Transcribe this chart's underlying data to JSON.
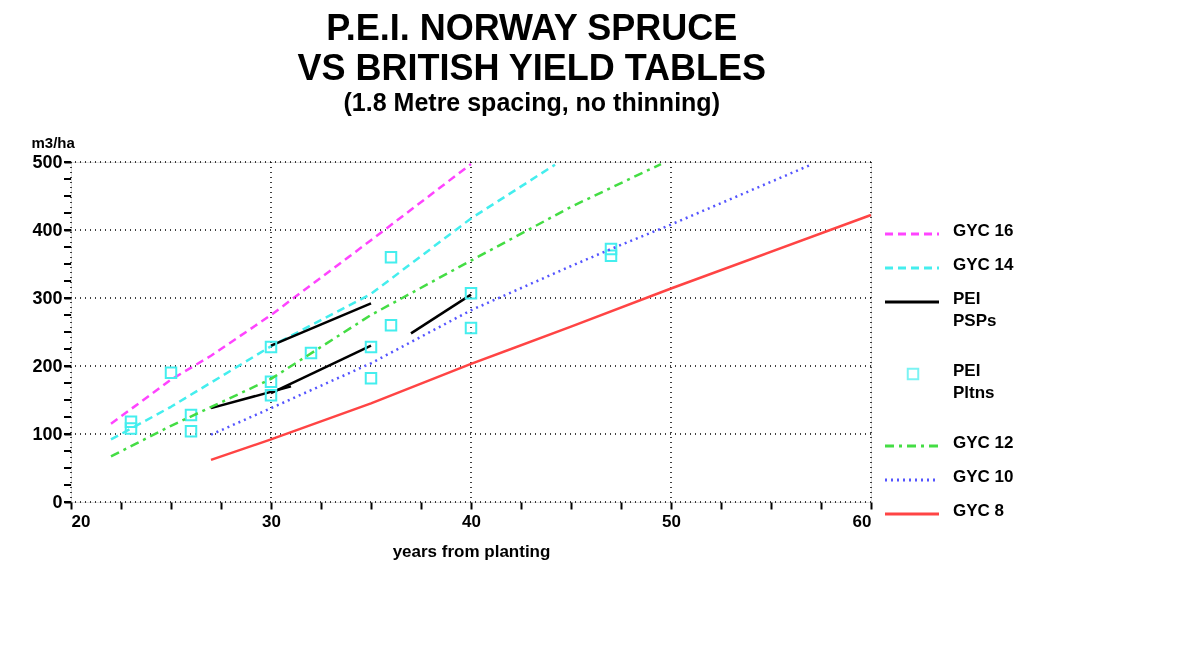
{
  "chart_data": {
    "type": "line",
    "title": "P.E.I. NORWAY SPRUCE\nVS BRITISH YIELD TABLES",
    "subtitle": "(1.8 Metre spacing, no thinning)",
    "xlabel": "years from planting",
    "ylabel": "m3/ha",
    "xlim": [
      20,
      60
    ],
    "ylim": [
      0,
      500
    ],
    "xticks": [
      20,
      {
        "value": 22.5,
        "label": null
      },
      {
        "value": 25,
        "label": null
      },
      {
        "value": 27.5,
        "label": null
      },
      30,
      {
        "value": 32.5,
        "label": null
      },
      {
        "value": 35,
        "label": null
      },
      {
        "value": 37.5,
        "label": null
      },
      40,
      {
        "value": 42.5,
        "label": null
      },
      {
        "value": 45,
        "label": null
      },
      {
        "value": 47.5,
        "label": null
      },
      50,
      {
        "value": 52.5,
        "label": null
      },
      {
        "value": 55,
        "label": null
      },
      {
        "value": 57.5,
        "label": null
      },
      60
    ],
    "yticks": [
      0,
      {
        "value": 25,
        "label": null
      },
      {
        "value": 50,
        "label": null
      },
      {
        "value": 75,
        "label": null
      },
      100,
      {
        "value": 125,
        "label": null
      },
      {
        "value": 150,
        "label": null
      },
      {
        "value": 175,
        "label": null
      },
      200,
      {
        "value": 225,
        "label": null
      },
      {
        "value": 250,
        "label": null
      },
      {
        "value": 275,
        "label": null
      },
      300,
      {
        "value": 325,
        "label": null
      },
      {
        "value": 350,
        "label": null
      },
      {
        "value": 375,
        "label": null
      },
      400,
      {
        "value": 425,
        "label": null
      },
      {
        "value": 450,
        "label": null
      },
      {
        "value": 475,
        "label": null
      },
      500
    ],
    "grid": true,
    "legend": "right",
    "series": [
      {
        "name": "GYC 16",
        "color": "#ff44ff",
        "line_style": "dashed",
        "x": [
          22,
          25,
          27,
          30,
          35,
          40
        ],
        "values": [
          115,
          180,
          215,
          275,
          385,
          497
        ]
      },
      {
        "name": "GYC 14",
        "color": "#44eeee",
        "line_style": "dashed",
        "x": [
          22,
          25,
          30,
          35,
          40,
          44.2
        ],
        "values": [
          92,
          140,
          229,
          306,
          417,
          496
        ]
      },
      {
        "name": "PEI PSPs",
        "color": "#000000",
        "line_style": "solid",
        "x": [
          27,
          31
        ],
        "values": [
          138,
          170
        ]
      },
      {
        "color": "#000000",
        "line_style": "solid",
        "x": [
          30,
          35
        ],
        "values": [
          160,
          230
        ]
      },
      {
        "color": "#000000",
        "line_style": "solid",
        "x": [
          30,
          35
        ],
        "values": [
          230,
          292
        ]
      },
      {
        "color": "#000000",
        "line_style": "solid",
        "x": [
          37,
          40
        ],
        "values": [
          248,
          305
        ]
      },
      {
        "name": "PEI Pltns",
        "type": "scatter",
        "color": "#44eeee",
        "marker": "square",
        "x": [
          23,
          23,
          25,
          26,
          26,
          30,
          30,
          30,
          32,
          35,
          35,
          36,
          36,
          40,
          40,
          47,
          47
        ],
        "values": [
          118,
          108,
          190,
          128,
          104,
          228,
          177,
          157,
          219,
          228,
          182,
          360,
          260,
          307,
          256,
          372,
          362
        ]
      },
      {
        "name": "GYC 12",
        "color": "#44dd44",
        "line_style": "dashdot",
        "x": [
          22,
          25,
          30,
          35,
          40,
          45,
          49.5
        ],
        "values": [
          67,
          112,
          181,
          275,
          355,
          434,
          497
        ]
      },
      {
        "name": "GYC 10",
        "color": "#5555ff",
        "line_style": "dotted",
        "x": [
          27,
          30,
          35,
          40,
          45,
          47,
          50,
          57
        ],
        "values": [
          99,
          138,
          204,
          282,
          347,
          372,
          408,
          496
        ]
      },
      {
        "name": "GYC 8",
        "color": "#ff4444",
        "line_style": "solid",
        "x": [
          27,
          30,
          35,
          40,
          45,
          50,
          60
        ],
        "values": [
          62,
          92,
          145,
          203,
          258,
          314,
          422
        ]
      }
    ]
  }
}
